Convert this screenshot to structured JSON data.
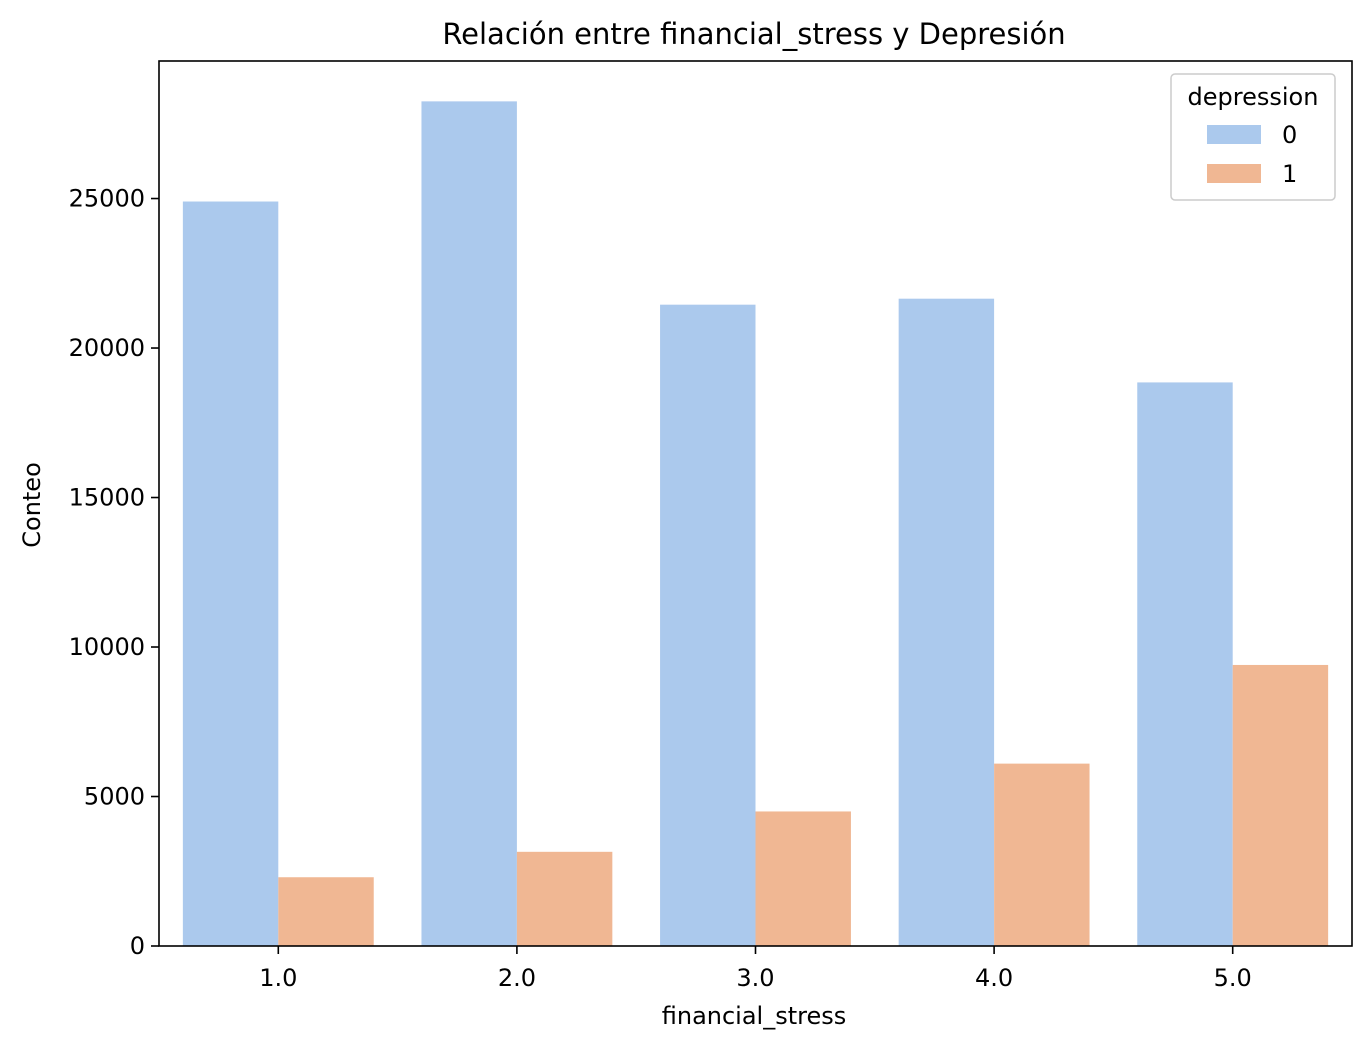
{
  "chart_data": {
    "type": "bar",
    "title": "Relación entre financial_stress y Depresión",
    "xlabel": "financial_stress",
    "ylabel": "Conteo",
    "categories": [
      "1.0",
      "2.0",
      "3.0",
      "4.0",
      "5.0"
    ],
    "series": [
      {
        "name": "0",
        "color": "#abc9ed",
        "values": [
          24900,
          28250,
          21450,
          21650,
          18850
        ]
      },
      {
        "name": "1",
        "color": "#f0b793",
        "values": [
          2300,
          3150,
          4500,
          6100,
          9400
        ]
      }
    ],
    "ylim": [
      0,
      29600
    ],
    "yticks": [
      0,
      5000,
      10000,
      15000,
      20000,
      25000
    ],
    "legend": {
      "title": "depression",
      "position": "top-right"
    },
    "grid": false
  }
}
